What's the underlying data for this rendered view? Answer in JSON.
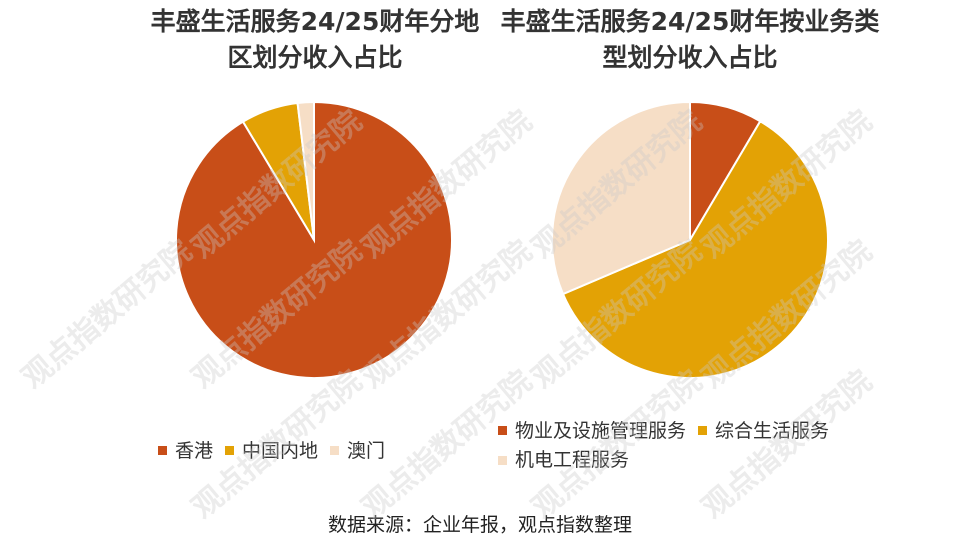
{
  "watermark": "观点指数研究院",
  "source": "数据来源：企业年报，观点指数整理",
  "chart_data": [
    {
      "type": "pie",
      "title": "丰盛生活服务24/25财年分地区划分收入占比",
      "title_lines": [
        "丰盛生活服务24/25财年分地",
        "区划分收入占比"
      ],
      "categories": [
        "香港",
        "中国内地",
        "澳门"
      ],
      "values": [
        91.4,
        6.7,
        1.9
      ],
      "unit": "%",
      "colors": [
        "#C84E18",
        "#E3A205",
        "#F6DEC6"
      ],
      "legend": "bottom"
    },
    {
      "type": "pie",
      "title": "丰盛生活服务24/25财年按业务类型划分收入占比",
      "title_lines": [
        "丰盛生活服务24/25财年按业务类",
        "型划分收入占比"
      ],
      "categories": [
        "物业及设施管理服务",
        "综合生活服务",
        "机电工程服务"
      ],
      "values": [
        8.5,
        60.1,
        31.4
      ],
      "unit": "%",
      "colors": [
        "#C84E18",
        "#E3A205",
        "#F6DEC6"
      ],
      "legend": "bottom"
    }
  ]
}
